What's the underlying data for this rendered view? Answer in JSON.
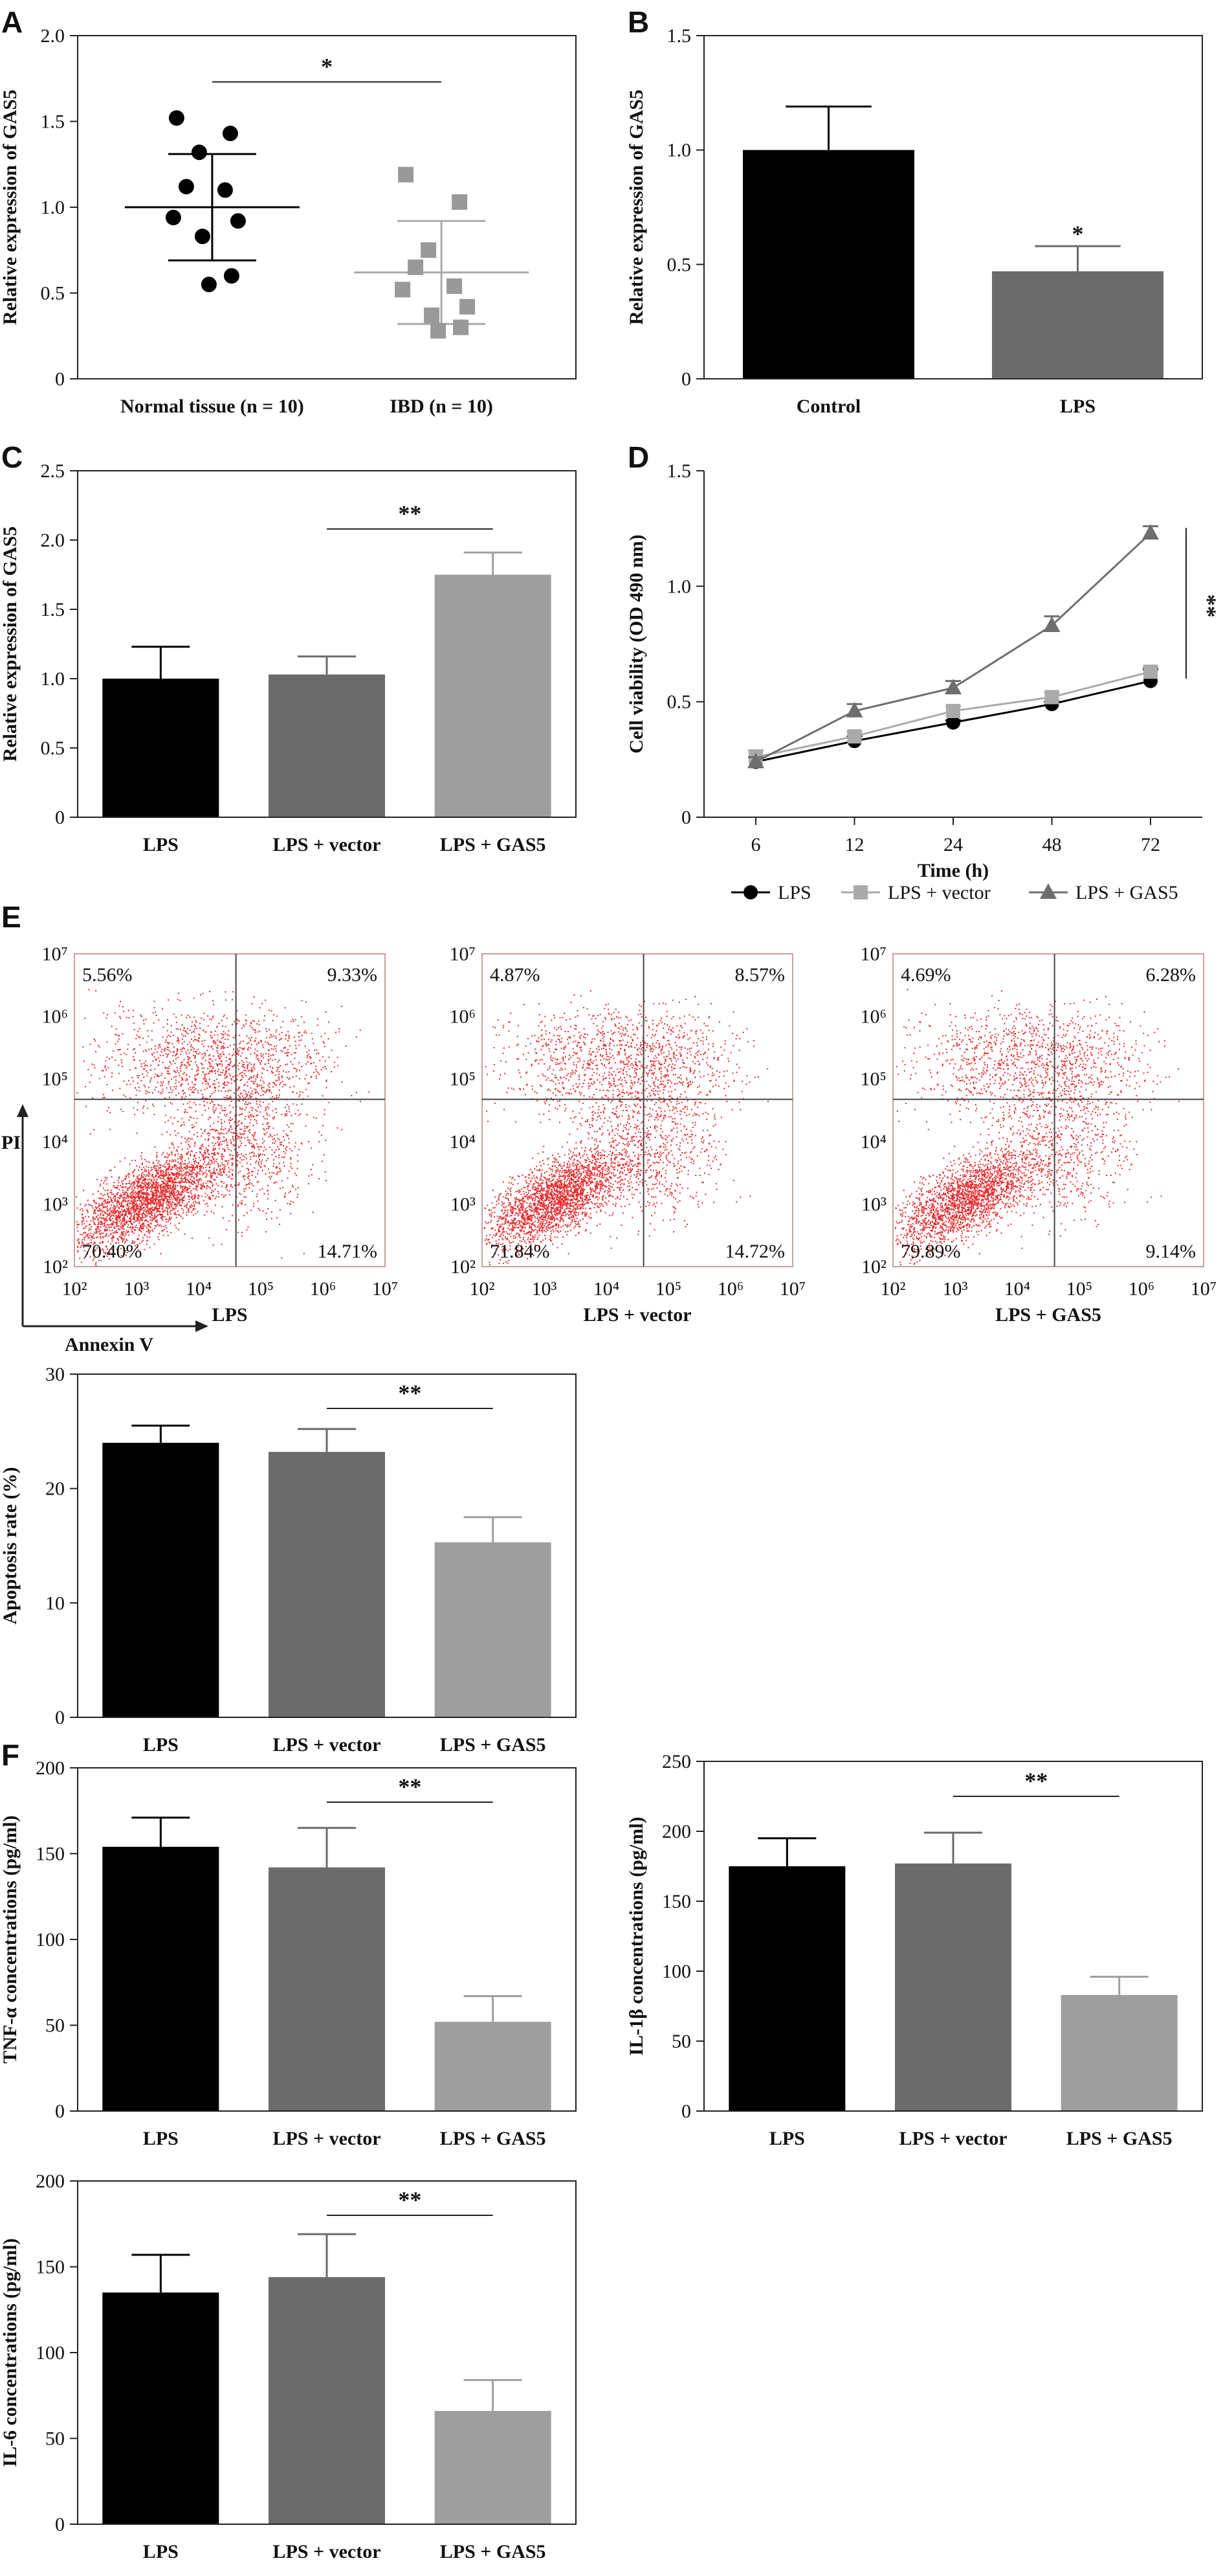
{
  "panel_labels": [
    "A",
    "B",
    "C",
    "D",
    "E",
    "F"
  ],
  "chart_data": [
    {
      "id": "A",
      "type": "scatter",
      "panel": "A",
      "ylabel": "Relative expression of GAS5",
      "ylim": [
        0,
        2.0
      ],
      "yticks": [
        0,
        0.5,
        1.0,
        1.5,
        2.0
      ],
      "ytick_labels": [
        "0",
        "0.5",
        "1.0",
        "1.5",
        "2.0"
      ],
      "groups": [
        {
          "name": "Normal tissue (n = 10)",
          "marker": "circle",
          "color": "#000000",
          "points": [
            1.52,
            1.43,
            1.32,
            1.12,
            1.1,
            0.94,
            0.92,
            0.83,
            0.6,
            0.55
          ],
          "mean": 1.0,
          "sd_upper": 1.31,
          "sd_lower": 0.69
        },
        {
          "name": "IBD (n = 10)",
          "marker": "square",
          "color": "#999999",
          "points": [
            1.19,
            1.03,
            0.75,
            0.65,
            0.54,
            0.52,
            0.42,
            0.37,
            0.3,
            0.28
          ],
          "mean": 0.62,
          "sd_upper": 0.92,
          "sd_lower": 0.32
        }
      ],
      "significance": [
        {
          "from": 0,
          "to": 1,
          "label": "*",
          "y": 1.73
        }
      ]
    },
    {
      "id": "B",
      "type": "bar",
      "panel": "B",
      "ylabel": "Relative expression of GAS5",
      "ylim": [
        0,
        1.5
      ],
      "yticks": [
        0,
        0.5,
        1.0,
        1.5
      ],
      "ytick_labels": [
        "0",
        "0.5",
        "1.0",
        "1.5"
      ],
      "categories": [
        "Control",
        "LPS"
      ],
      "values": [
        1.0,
        0.47
      ],
      "errors": [
        0.19,
        0.11
      ],
      "colors": [
        "#000000",
        "#6b6b6b"
      ],
      "significance": [
        {
          "from": 1,
          "to": 1,
          "label": "*",
          "y": 0.6
        }
      ]
    },
    {
      "id": "C",
      "type": "bar",
      "panel": "C",
      "ylabel": "Relative expression of GAS5",
      "ylim": [
        0,
        2.5
      ],
      "yticks": [
        0,
        0.5,
        1.0,
        1.5,
        2.0,
        2.5
      ],
      "ytick_labels": [
        "0",
        "0.5",
        "1.0",
        "1.5",
        "2.0",
        "2.5"
      ],
      "categories": [
        "LPS",
        "LPS + vector",
        "LPS + GAS5"
      ],
      "values": [
        1.0,
        1.03,
        1.75
      ],
      "errors": [
        0.23,
        0.13,
        0.16
      ],
      "colors": [
        "#000000",
        "#6b6b6b",
        "#9e9e9e"
      ],
      "significance": [
        {
          "from": 1,
          "to": 2,
          "label": "**",
          "y": 2.08
        }
      ]
    },
    {
      "id": "D",
      "type": "line",
      "panel": "D",
      "ylabel": "Cell viability (OD 490 nm)",
      "xlabel": "Time (h)",
      "ylim": [
        0,
        1.5
      ],
      "yticks": [
        0,
        0.5,
        1.0,
        1.5
      ],
      "ytick_labels": [
        "0",
        "0.5",
        "1.0",
        "1.5"
      ],
      "x": [
        "6",
        "12",
        "24",
        "48",
        "72"
      ],
      "series": [
        {
          "name": "LPS",
          "marker": "circle",
          "color": "#000000",
          "values": [
            0.24,
            0.33,
            0.41,
            0.49,
            0.59
          ],
          "errors": [
            0.02,
            0.02,
            0.01,
            0.01,
            0.05
          ]
        },
        {
          "name": "LPS + vector",
          "marker": "square",
          "color": "#aaaaaa",
          "values": [
            0.26,
            0.35,
            0.46,
            0.52,
            0.63
          ],
          "errors": [
            0.03,
            0.02,
            0.02,
            0.02,
            0.02
          ]
        },
        {
          "name": "LPS + GAS5",
          "marker": "triangle",
          "color": "#6e6e6e",
          "values": [
            0.24,
            0.46,
            0.56,
            0.83,
            1.23
          ],
          "errors": [
            0.02,
            0.03,
            0.03,
            0.04,
            0.03
          ]
        }
      ],
      "significance": [
        {
          "label": "**",
          "y_from": 0.6,
          "y_to": 1.23
        }
      ]
    },
    {
      "id": "E-flow",
      "type": "scatter",
      "panel": "E",
      "xlabel": "Annexin V",
      "ylabel": "PI",
      "axis_ticks": [
        "10²",
        "10³",
        "10⁴",
        "10⁵",
        "10⁶",
        "10⁷"
      ],
      "plots": [
        {
          "name": "LPS",
          "quadrants": {
            "ul": "5.56%",
            "ur": "9.33%",
            "ll": "70.40%",
            "lr": "14.71%"
          }
        },
        {
          "name": "LPS + vector",
          "quadrants": {
            "ul": "4.87%",
            "ur": "8.57%",
            "ll": "71.84%",
            "lr": "14.72%"
          }
        },
        {
          "name": "LPS + GAS5",
          "quadrants": {
            "ul": "4.69%",
            "ur": "6.28%",
            "ll": "79.89%",
            "lr": "9.14%"
          }
        }
      ]
    },
    {
      "id": "E-apoptosis",
      "type": "bar",
      "panel": "E",
      "ylabel": "Apoptosis rate (%)",
      "ylim": [
        0,
        30
      ],
      "yticks": [
        0,
        10,
        20,
        30
      ],
      "ytick_labels": [
        "0",
        "10",
        "20",
        "30"
      ],
      "categories": [
        "LPS",
        "LPS + vector",
        "LPS + GAS5"
      ],
      "values": [
        24.0,
        23.2,
        15.3
      ],
      "errors": [
        1.5,
        2.0,
        2.2
      ],
      "colors": [
        "#000000",
        "#6b6b6b",
        "#9e9e9e"
      ],
      "significance": [
        {
          "from": 1,
          "to": 2,
          "label": "**",
          "y": 27.0
        }
      ]
    },
    {
      "id": "F-tnf",
      "type": "bar",
      "panel": "F",
      "ylabel": "TNF-α concentrations (pg/ml)",
      "ylim": [
        0,
        200
      ],
      "yticks": [
        0,
        50,
        100,
        150,
        200
      ],
      "ytick_labels": [
        "0",
        "50",
        "100",
        "150",
        "200"
      ],
      "categories": [
        "LPS",
        "LPS + vector",
        "LPS + GAS5"
      ],
      "values": [
        154,
        142,
        52
      ],
      "errors": [
        17,
        23,
        15
      ],
      "colors": [
        "#000000",
        "#6b6b6b",
        "#9e9e9e"
      ],
      "significance": [
        {
          "from": 1,
          "to": 2,
          "label": "**",
          "y": 180
        }
      ]
    },
    {
      "id": "F-il1b",
      "type": "bar",
      "panel": "F",
      "ylabel": "IL-1β concentrations (pg/ml)",
      "ylim": [
        0,
        250
      ],
      "yticks": [
        0,
        50,
        100,
        150,
        200,
        250
      ],
      "ytick_labels": [
        "0",
        "50",
        "100",
        "150",
        "200",
        "250"
      ],
      "categories": [
        "LPS",
        "LPS + vector",
        "LPS + GAS5"
      ],
      "values": [
        175,
        177,
        83
      ],
      "errors": [
        20,
        22,
        13
      ],
      "colors": [
        "#000000",
        "#6b6b6b",
        "#9e9e9e"
      ],
      "significance": [
        {
          "from": 1,
          "to": 2,
          "label": "**",
          "y": 225
        }
      ]
    },
    {
      "id": "F-il6",
      "type": "bar",
      "panel": "F",
      "ylabel": "IL-6 concentrations (pg/ml)",
      "ylim": [
        0,
        200
      ],
      "yticks": [
        0,
        50,
        100,
        150,
        200
      ],
      "ytick_labels": [
        "0",
        "50",
        "100",
        "150",
        "200"
      ],
      "categories": [
        "LPS",
        "LPS + vector",
        "LPS + GAS5"
      ],
      "values": [
        135,
        144,
        66
      ],
      "errors": [
        22,
        25,
        18
      ],
      "colors": [
        "#000000",
        "#6b6b6b",
        "#9e9e9e"
      ],
      "significance": [
        {
          "from": 1,
          "to": 2,
          "label": "**",
          "y": 180
        }
      ]
    }
  ]
}
